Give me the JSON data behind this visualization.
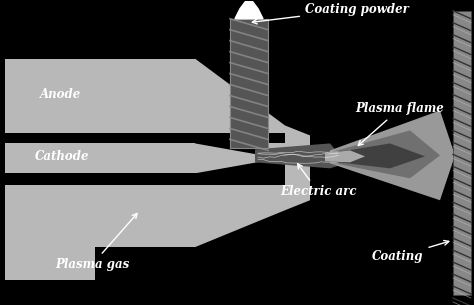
{
  "bg_color": "#000000",
  "light_gray": "#b8b8b8",
  "med_gray": "#888888",
  "dark_gray": "#555555",
  "darker_gray": "#3a3a3a",
  "white": "#ffffff",
  "labels": {
    "coating_powder": "Coating powder",
    "plasma_flame": "Plasma flame",
    "electric_arc": "Electric arc",
    "anode": "Anode",
    "cathode": "Cathode",
    "plasma_gas": "Plasma gas",
    "coating": "Coating"
  },
  "figsize": [
    4.74,
    3.05
  ],
  "dpi": 100
}
